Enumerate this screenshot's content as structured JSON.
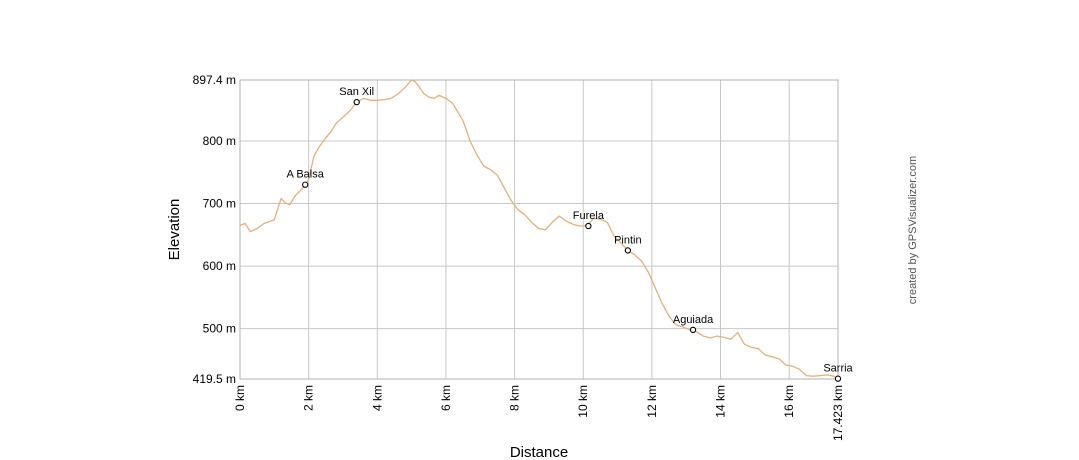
{
  "chart_data": {
    "type": "line",
    "title": "",
    "xlabel": "Distance",
    "ylabel": "Elevation",
    "credit": "created by GPSVisualizer.com",
    "grid": true,
    "xlim": [
      0,
      17.423
    ],
    "ylim": [
      419.5,
      897.4
    ],
    "x_ticks": [
      {
        "value": 0,
        "label": "0 km"
      },
      {
        "value": 2,
        "label": "2 km"
      },
      {
        "value": 4,
        "label": "4 km"
      },
      {
        "value": 6,
        "label": "6 km"
      },
      {
        "value": 8,
        "label": "8 km"
      },
      {
        "value": 10,
        "label": "10 km"
      },
      {
        "value": 12,
        "label": "12 km"
      },
      {
        "value": 14,
        "label": "14 km"
      },
      {
        "value": 16,
        "label": "16 km"
      },
      {
        "value": 17.423,
        "label": "17.423 km"
      }
    ],
    "y_ticks": [
      {
        "value": 419.5,
        "label": "419.5 m"
      },
      {
        "value": 500,
        "label": "500 m"
      },
      {
        "value": 600,
        "label": "600 m"
      },
      {
        "value": 700,
        "label": "700 m"
      },
      {
        "value": 800,
        "label": "800 m"
      },
      {
        "value": 897.4,
        "label": "897.4 m"
      }
    ],
    "line_color": "#e6b07a",
    "series": [
      {
        "x": [
          0,
          0.15,
          0.3,
          0.5,
          0.7,
          0.9,
          1.0,
          1.1,
          1.2,
          1.3,
          1.45,
          1.6,
          1.75,
          1.9,
          2.0,
          2.15,
          2.3,
          2.5,
          2.65,
          2.8,
          3.0,
          3.2,
          3.4,
          3.6,
          3.8,
          4.0,
          4.2,
          4.4,
          4.6,
          4.8,
          5.0,
          5.1,
          5.2,
          5.35,
          5.5,
          5.65,
          5.8,
          6.0,
          6.2,
          6.5,
          6.7,
          6.9,
          7.1,
          7.3,
          7.5,
          7.7,
          7.9,
          8.1,
          8.3,
          8.5,
          8.7,
          8.9,
          9.1,
          9.3,
          9.5,
          9.7,
          9.9,
          10.1,
          10.3,
          10.5,
          10.7,
          10.9,
          11.1,
          11.3,
          11.5,
          11.7,
          11.9,
          12.1,
          12.3,
          12.5,
          12.7,
          12.9,
          13.1,
          13.3,
          13.5,
          13.7,
          13.9,
          14.1,
          14.3,
          14.5,
          14.7,
          14.9,
          15.1,
          15.3,
          15.5,
          15.7,
          15.9,
          16.1,
          16.3,
          16.5,
          16.7,
          16.9,
          17.1,
          17.3,
          17.423
        ],
        "y": [
          665,
          668,
          655,
          660,
          668,
          672,
          674,
          692,
          708,
          702,
          698,
          712,
          720,
          730,
          738,
          775,
          790,
          805,
          815,
          828,
          838,
          848,
          862,
          868,
          865,
          865,
          866,
          868,
          875,
          885,
          897.4,
          895,
          888,
          876,
          870,
          868,
          873,
          868,
          860,
          832,
          800,
          778,
          760,
          754,
          745,
          725,
          705,
          690,
          682,
          670,
          660,
          658,
          670,
          680,
          672,
          667,
          664,
          664,
          676,
          675,
          670,
          648,
          637,
          625,
          618,
          608,
          590,
          565,
          540,
          520,
          506,
          503,
          498,
          495,
          488,
          485,
          488,
          486,
          483,
          494,
          475,
          470,
          468,
          458,
          455,
          452,
          442,
          440,
          435,
          425,
          424,
          425,
          426,
          424,
          419.5
        ]
      }
    ],
    "waypoints": [
      {
        "name": "A Balsa",
        "x": 1.9,
        "y": 730
      },
      {
        "name": "San Xil",
        "x": 3.4,
        "y": 862
      },
      {
        "name": "Furela",
        "x": 10.15,
        "y": 664
      },
      {
        "name": "Pintin",
        "x": 11.3,
        "y": 625
      },
      {
        "name": "Aguiada",
        "x": 13.2,
        "y": 498
      },
      {
        "name": "Sarria",
        "x": 17.423,
        "y": 420
      }
    ]
  }
}
